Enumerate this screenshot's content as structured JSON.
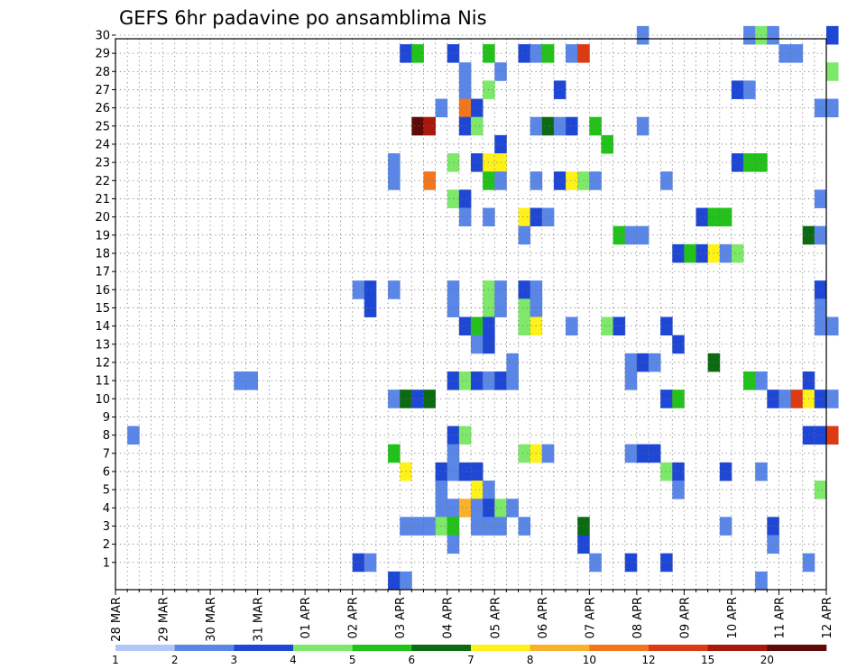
{
  "chart_data": {
    "type": "heatmap",
    "title": "GEFS 6hr padavine po ansamblima Nis",
    "xlabel": "",
    "ylabel": "",
    "x_ticks": [
      "28 MAR",
      "29 MAR",
      "30 MAR",
      "31 MAR",
      "01 APR",
      "02 APR",
      "03 APR",
      "04 APR",
      "05 APR",
      "06 APR",
      "07 APR",
      "08 APR",
      "09 APR",
      "10 APR",
      "11 APR",
      "12 APR"
    ],
    "x_unit": "6-hour step from 28 MAR 00Z",
    "x_steps": 60,
    "y_ticks": [
      1,
      2,
      3,
      4,
      5,
      6,
      7,
      8,
      9,
      10,
      11,
      12,
      13,
      14,
      15,
      16,
      17,
      18,
      19,
      20,
      21,
      22,
      23,
      24,
      25,
      26,
      27,
      28,
      29,
      30
    ],
    "grid": true,
    "colorbar": {
      "labels": [
        "1",
        "2",
        "3",
        "4",
        "5",
        "6",
        "7",
        "8",
        "10",
        "12",
        "15",
        "20"
      ],
      "colors": [
        "#b3c6f5",
        "#5a86e8",
        "#1f47d6",
        "#7ee86a",
        "#22c21a",
        "#0b6a12",
        "#fff21a",
        "#fbb02a",
        "#f2761e",
        "#dc3a12",
        "#a8180c",
        "#5e0a06"
      ]
    },
    "values": [
      [
        30,
        44,
        1
      ],
      [
        30,
        53,
        1
      ],
      [
        30,
        54,
        3
      ],
      [
        30,
        55,
        1
      ],
      [
        30,
        60,
        2
      ],
      [
        29,
        24,
        2
      ],
      [
        29,
        25,
        4
      ],
      [
        29,
        28,
        2
      ],
      [
        29,
        31,
        4
      ],
      [
        29,
        34,
        2
      ],
      [
        29,
        35,
        1
      ],
      [
        29,
        36,
        4
      ],
      [
        29,
        38,
        1
      ],
      [
        29,
        39,
        9
      ],
      [
        29,
        56,
        1
      ],
      [
        29,
        57,
        1
      ],
      [
        28,
        29,
        1
      ],
      [
        28,
        32,
        1
      ],
      [
        28,
        60,
        3
      ],
      [
        27,
        29,
        1
      ],
      [
        27,
        31,
        3
      ],
      [
        27,
        37,
        2
      ],
      [
        27,
        52,
        2
      ],
      [
        27,
        53,
        1
      ],
      [
        26,
        27,
        1
      ],
      [
        26,
        29,
        8
      ],
      [
        26,
        30,
        2
      ],
      [
        26,
        59,
        1
      ],
      [
        26,
        60,
        1
      ],
      [
        25,
        25,
        11
      ],
      [
        25,
        26,
        10
      ],
      [
        25,
        29,
        2
      ],
      [
        25,
        30,
        3
      ],
      [
        25,
        35,
        1
      ],
      [
        25,
        36,
        5
      ],
      [
        25,
        37,
        1
      ],
      [
        25,
        38,
        2
      ],
      [
        25,
        40,
        4
      ],
      [
        25,
        44,
        1
      ],
      [
        24,
        32,
        2
      ],
      [
        24,
        41,
        4
      ],
      [
        23,
        23,
        1
      ],
      [
        23,
        28,
        3
      ],
      [
        23,
        30,
        2
      ],
      [
        23,
        31,
        6
      ],
      [
        23,
        32,
        6
      ],
      [
        23,
        52,
        2
      ],
      [
        23,
        53,
        4
      ],
      [
        23,
        54,
        4
      ],
      [
        22,
        23,
        1
      ],
      [
        22,
        26,
        8
      ],
      [
        22,
        31,
        4
      ],
      [
        22,
        32,
        1
      ],
      [
        22,
        35,
        1
      ],
      [
        22,
        37,
        2
      ],
      [
        22,
        38,
        6
      ],
      [
        22,
        39,
        3
      ],
      [
        22,
        40,
        1
      ],
      [
        22,
        46,
        1
      ],
      [
        21,
        28,
        3
      ],
      [
        21,
        29,
        2
      ],
      [
        21,
        59,
        1
      ],
      [
        20,
        29,
        1
      ],
      [
        20,
        31,
        1
      ],
      [
        20,
        34,
        6
      ],
      [
        20,
        35,
        2
      ],
      [
        20,
        36,
        1
      ],
      [
        20,
        49,
        2
      ],
      [
        20,
        50,
        4
      ],
      [
        20,
        51,
        4
      ],
      [
        19,
        34,
        1
      ],
      [
        19,
        42,
        4
      ],
      [
        19,
        43,
        1
      ],
      [
        19,
        44,
        1
      ],
      [
        19,
        58,
        5
      ],
      [
        19,
        59,
        1
      ],
      [
        18,
        47,
        2
      ],
      [
        18,
        48,
        4
      ],
      [
        18,
        49,
        2
      ],
      [
        18,
        50,
        6
      ],
      [
        18,
        51,
        1
      ],
      [
        18,
        52,
        3
      ],
      [
        16,
        20,
        1
      ],
      [
        16,
        23,
        1
      ],
      [
        16,
        21,
        2
      ],
      [
        16,
        28,
        1
      ],
      [
        16,
        31,
        3
      ],
      [
        16,
        32,
        1
      ],
      [
        16,
        34,
        2
      ],
      [
        16,
        35,
        1
      ],
      [
        16,
        59,
        2
      ],
      [
        15,
        21,
        2
      ],
      [
        15,
        28,
        1
      ],
      [
        15,
        31,
        3
      ],
      [
        15,
        32,
        1
      ],
      [
        15,
        34,
        3
      ],
      [
        15,
        35,
        1
      ],
      [
        15,
        59,
        1
      ],
      [
        14,
        29,
        2
      ],
      [
        14,
        30,
        4
      ],
      [
        14,
        31,
        2
      ],
      [
        14,
        34,
        3
      ],
      [
        14,
        35,
        6
      ],
      [
        14,
        38,
        1
      ],
      [
        14,
        41,
        3
      ],
      [
        14,
        42,
        2
      ],
      [
        14,
        46,
        2
      ],
      [
        14,
        59,
        1
      ],
      [
        14,
        60,
        1
      ],
      [
        13,
        30,
        1
      ],
      [
        13,
        31,
        2
      ],
      [
        13,
        47,
        2
      ],
      [
        12,
        33,
        1
      ],
      [
        12,
        43,
        1
      ],
      [
        12,
        44,
        2
      ],
      [
        12,
        45,
        1
      ],
      [
        12,
        50,
        5
      ],
      [
        11,
        10,
        1
      ],
      [
        11,
        11,
        1
      ],
      [
        11,
        28,
        2
      ],
      [
        11,
        29,
        3
      ],
      [
        11,
        30,
        2
      ],
      [
        11,
        31,
        1
      ],
      [
        11,
        32,
        2
      ],
      [
        11,
        33,
        1
      ],
      [
        11,
        43,
        1
      ],
      [
        11,
        53,
        4
      ],
      [
        11,
        54,
        1
      ],
      [
        11,
        58,
        2
      ],
      [
        10,
        23,
        1
      ],
      [
        10,
        24,
        5
      ],
      [
        10,
        25,
        2
      ],
      [
        10,
        26,
        5
      ],
      [
        10,
        46,
        2
      ],
      [
        10,
        47,
        4
      ],
      [
        10,
        55,
        2
      ],
      [
        10,
        56,
        1
      ],
      [
        10,
        57,
        9
      ],
      [
        10,
        58,
        6
      ],
      [
        10,
        59,
        2
      ],
      [
        10,
        60,
        1
      ],
      [
        8,
        1,
        1
      ],
      [
        8,
        28,
        2
      ],
      [
        8,
        29,
        3
      ],
      [
        8,
        58,
        2
      ],
      [
        8,
        59,
        2
      ],
      [
        8,
        60,
        9
      ],
      [
        7,
        23,
        4
      ],
      [
        7,
        28,
        1
      ],
      [
        7,
        34,
        3
      ],
      [
        7,
        35,
        6
      ],
      [
        7,
        36,
        1
      ],
      [
        7,
        43,
        1
      ],
      [
        7,
        44,
        2
      ],
      [
        7,
        45,
        2
      ],
      [
        6,
        24,
        6
      ],
      [
        6,
        27,
        2
      ],
      [
        6,
        28,
        1
      ],
      [
        6,
        29,
        2
      ],
      [
        6,
        30,
        2
      ],
      [
        6,
        46,
        3
      ],
      [
        6,
        47,
        2
      ],
      [
        6,
        51,
        2
      ],
      [
        6,
        54,
        1
      ],
      [
        5,
        27,
        1
      ],
      [
        5,
        30,
        6
      ],
      [
        5,
        31,
        1
      ],
      [
        5,
        47,
        1
      ],
      [
        5,
        59,
        3
      ],
      [
        4,
        27,
        1
      ],
      [
        4,
        28,
        1
      ],
      [
        4,
        29,
        7
      ],
      [
        4,
        30,
        1
      ],
      [
        4,
        31,
        2
      ],
      [
        4,
        32,
        3
      ],
      [
        4,
        33,
        1
      ],
      [
        3,
        24,
        1
      ],
      [
        3,
        25,
        1
      ],
      [
        3,
        26,
        1
      ],
      [
        3,
        27,
        3
      ],
      [
        3,
        28,
        4
      ],
      [
        3,
        30,
        1
      ],
      [
        3,
        31,
        1
      ],
      [
        3,
        32,
        1
      ],
      [
        3,
        34,
        1
      ],
      [
        3,
        39,
        5
      ],
      [
        3,
        51,
        1
      ],
      [
        3,
        55,
        2
      ],
      [
        2,
        28,
        1
      ],
      [
        2,
        39,
        2
      ],
      [
        2,
        55,
        1
      ],
      [
        1,
        20,
        2
      ],
      [
        1,
        21,
        1
      ],
      [
        1,
        40,
        1
      ],
      [
        1,
        43,
        2
      ],
      [
        1,
        46,
        2
      ],
      [
        1,
        58,
        1
      ],
      [
        0,
        23,
        2
      ],
      [
        0,
        24,
        1
      ],
      [
        0,
        54,
        1
      ]
    ]
  }
}
